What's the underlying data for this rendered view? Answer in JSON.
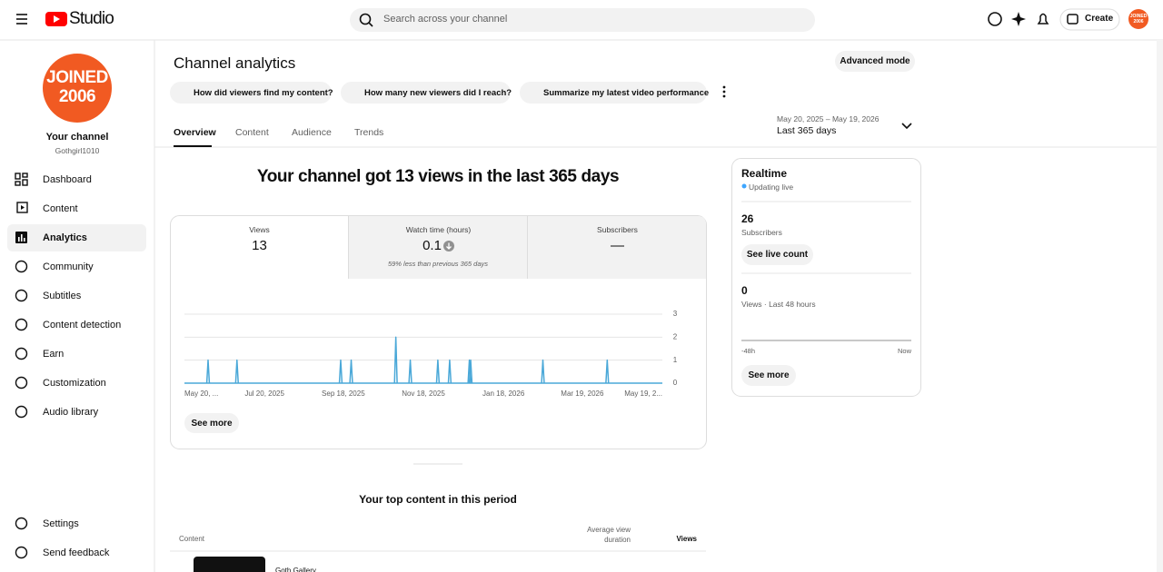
{
  "header": {
    "logo": "Studio",
    "search_placeholder": "Search across your channel",
    "create": "Create"
  },
  "sidebar": {
    "avatar_lines": [
      "JOINED",
      "2006"
    ],
    "channel_label": "Your channel",
    "handle": "Gothgirl1010",
    "nav": [
      "Dashboard",
      "Content",
      "Analytics",
      "Community",
      "Subtitles",
      "Content detection",
      "Earn",
      "Customization",
      "Audio library"
    ],
    "bottom": [
      "Settings",
      "Send feedback"
    ]
  },
  "main": {
    "title": "Channel analytics",
    "advanced": "Advanced mode",
    "prompts": [
      "How did viewers find my content?",
      "How many new viewers did I reach?",
      "Summarize my latest video performance"
    ],
    "tabs": [
      "Overview",
      "Content",
      "Audience",
      "Trends"
    ],
    "date_range": "May 20, 2025 – May 19, 2026",
    "period": "Last 365 days",
    "headline": "Your channel got 13 views in the last 365 days",
    "metrics": [
      {
        "label": "Views",
        "value": 13
      },
      {
        "label": "Watch time (hours)",
        "value": 0.1,
        "note": "59% less than previous 365 days"
      },
      {
        "label": "Subscribers",
        "value": "—"
      }
    ],
    "see_more": "See more",
    "top_content": {
      "title": "Your top content in this period",
      "headers": [
        "Content",
        "Average view duration",
        "Views"
      ],
      "rows": [
        [
          "Goth Gallery"
        ]
      ]
    }
  },
  "chart_data": {
    "type": "line",
    "color": "#4aa8d8",
    "x": [
      18,
      40,
      119,
      127,
      161,
      172,
      193,
      202,
      217,
      218,
      273,
      322
    ],
    "values": [
      1,
      1,
      1,
      1,
      2,
      1,
      1,
      1,
      1,
      1,
      1,
      1
    ],
    "xlim": [
      0,
      364
    ],
    "xticks": [
      {
        "value": 0,
        "label": "May 20, ..."
      },
      {
        "value": 61,
        "label": "Jul 20, 2025"
      },
      {
        "value": 121,
        "label": "Sep 18, 2025"
      },
      {
        "value": 182,
        "label": "Nov 18, 2025"
      },
      {
        "value": 243,
        "label": "Jan 18, 2026"
      },
      {
        "value": 303,
        "label": "Mar 19, 2026"
      },
      {
        "value": 364,
        "label": "May 19, 2..."
      }
    ],
    "ylim": [
      0,
      3
    ],
    "yticks": [
      0,
      1,
      2,
      3
    ],
    "grid": true
  },
  "realtime": {
    "title": "Realtime",
    "status": "Updating live",
    "subscribers": 26,
    "subscribers_label": "Subscribers",
    "live_button": "See live count",
    "views": 0,
    "views_label": "Views · Last 48 hours",
    "axis": [
      "-48h",
      "Now"
    ],
    "see_more": "See more"
  }
}
